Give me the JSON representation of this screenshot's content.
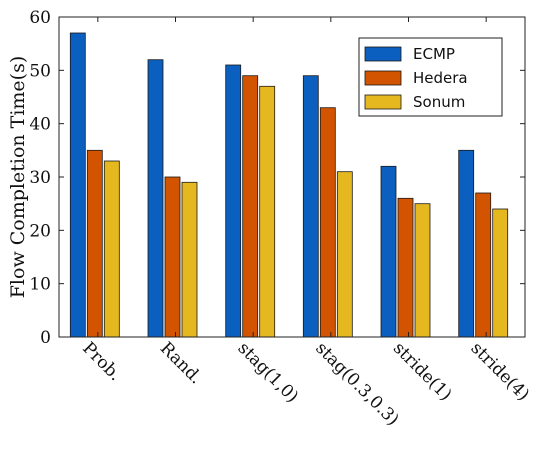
{
  "chart_data": {
    "type": "bar",
    "title": "",
    "xlabel": "",
    "ylabel": "Flow Completion Time(s)",
    "ylim": [
      0,
      60
    ],
    "yticks": [
      0,
      10,
      20,
      30,
      40,
      50,
      60
    ],
    "categories": [
      "Prob.",
      "Rand.",
      "stag(1,0)",
      "stag(0.3,0.3)",
      "stride(1)",
      "stride(4)"
    ],
    "series": [
      {
        "name": "ECMP",
        "color": "#0b5fbf",
        "values": [
          57,
          52,
          51,
          49,
          32,
          35
        ]
      },
      {
        "name": "Hedera",
        "color": "#d35400",
        "values": [
          35,
          30,
          49,
          43,
          26,
          27
        ]
      },
      {
        "name": "Sonum",
        "color": "#e6b820",
        "values": [
          33,
          29,
          47,
          31,
          25,
          24
        ]
      }
    ],
    "grid": false,
    "legend_position": "top-right"
  }
}
